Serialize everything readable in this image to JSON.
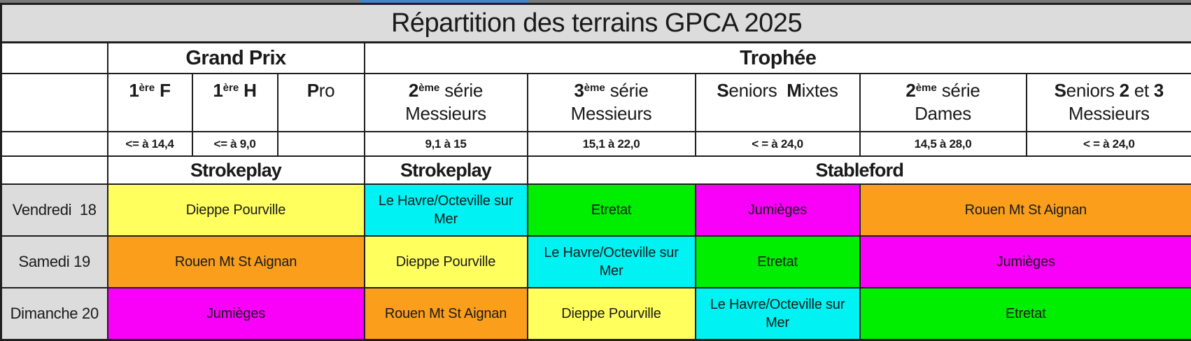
{
  "title": "Répartition des terrains GPCA 2025",
  "header": {
    "grand_prix": "Grand Prix",
    "trophee": "Trophée"
  },
  "columns": [
    {
      "key": "1ere-f",
      "label": [
        {
          "t": "1",
          "b": true
        },
        {
          "t": "ère",
          "b": true,
          "sup": true
        },
        {
          "t": " F",
          "b": true
        }
      ],
      "label2": "",
      "range": "<= à 14,4"
    },
    {
      "key": "1ere-h",
      "label": [
        {
          "t": "1",
          "b": true
        },
        {
          "t": "ère",
          "b": true,
          "sup": true
        },
        {
          "t": " H",
          "b": true
        }
      ],
      "label2": "",
      "range": "<= à 9,0"
    },
    {
      "key": "pro",
      "label": [
        {
          "t": "P",
          "b": true
        },
        {
          "t": "ro"
        }
      ],
      "label2": "",
      "range": ""
    },
    {
      "key": "2eme-serie-messieurs",
      "label": [
        {
          "t": "2",
          "b": true
        },
        {
          "t": "ème",
          "b": true,
          "sup": true
        },
        {
          "t": " série"
        }
      ],
      "label2": "Messieurs",
      "range": "9,1 à 15"
    },
    {
      "key": "3eme-serie-messieurs",
      "label": [
        {
          "t": "3",
          "b": true
        },
        {
          "t": "ème",
          "b": true,
          "sup": true
        },
        {
          "t": " série"
        }
      ],
      "label2": "Messieurs",
      "range": "15,1 à 22,0"
    },
    {
      "key": "seniors-mixtes",
      "label": [
        {
          "t": "S",
          "b": true
        },
        {
          "t": "eniors  "
        },
        {
          "t": "M",
          "b": true
        },
        {
          "t": "ixtes"
        }
      ],
      "label2": "",
      "range": "< = à 24,0"
    },
    {
      "key": "2eme-serie-dames",
      "label": [
        {
          "t": "2",
          "b": true
        },
        {
          "t": "ème",
          "b": true,
          "sup": true
        },
        {
          "t": " série"
        }
      ],
      "label2": "Dames",
      "range": "14,5 à 28,0"
    },
    {
      "key": "seniors-2-et-3-messieurs",
      "label": [
        {
          "t": "S",
          "b": true
        },
        {
          "t": "eniors "
        },
        {
          "t": "2",
          "b": true
        },
        {
          "t": " et "
        },
        {
          "t": "3",
          "b": true
        }
      ],
      "label2": "Messieurs",
      "range": "< = à 24,0"
    }
  ],
  "format_row": {
    "grand_prix": "Strokeplay",
    "serie2_messieurs": "Strokeplay",
    "stableford": "Stableford"
  },
  "venue_colors": {
    "Dieppe Pourville": "#FFFF5E",
    "Le Havre/Octeville sur Mer": "#00F2F2",
    "Etretat": "#00EE00",
    "Jumièges": "#F900F9",
    "Rouen Mt St Aignan": "#FA9E1B"
  },
  "schedule": [
    {
      "day": "Vendredi  18",
      "cells": [
        {
          "venue": "Dieppe Pourville",
          "color": "#FFFF5E"
        },
        {
          "venue": "Le Havre/Octeville sur Mer",
          "color": "#00F2F2"
        },
        {
          "venue": "Etretat",
          "color": "#00EE00"
        },
        {
          "venue": "Jumièges",
          "color": "#F900F9"
        },
        {
          "venue": "Rouen Mt St Aignan",
          "color": "#FA9E1B"
        }
      ]
    },
    {
      "day": "Samedi 19",
      "cells": [
        {
          "venue": "Rouen Mt St Aignan",
          "color": "#FA9E1B"
        },
        {
          "venue": "Dieppe Pourville",
          "color": "#FFFF5E"
        },
        {
          "venue": "Le Havre/Octeville sur Mer",
          "color": "#00F2F2"
        },
        {
          "venue": "Etretat",
          "color": "#00EE00"
        },
        {
          "venue": "Jumièges",
          "color": "#F900F9"
        }
      ]
    },
    {
      "day": "Dimanche 20",
      "cells": [
        {
          "venue": "Jumièges",
          "color": "#F900F9"
        },
        {
          "venue": "Rouen Mt St Aignan",
          "color": "#FA9E1B"
        },
        {
          "venue": "Dieppe Pourville",
          "color": "#FFFF5E"
        },
        {
          "venue": "Le Havre/Octeville sur Mer",
          "color": "#00F2F2"
        },
        {
          "venue": "Etretat",
          "color": "#00EE00"
        }
      ]
    }
  ]
}
